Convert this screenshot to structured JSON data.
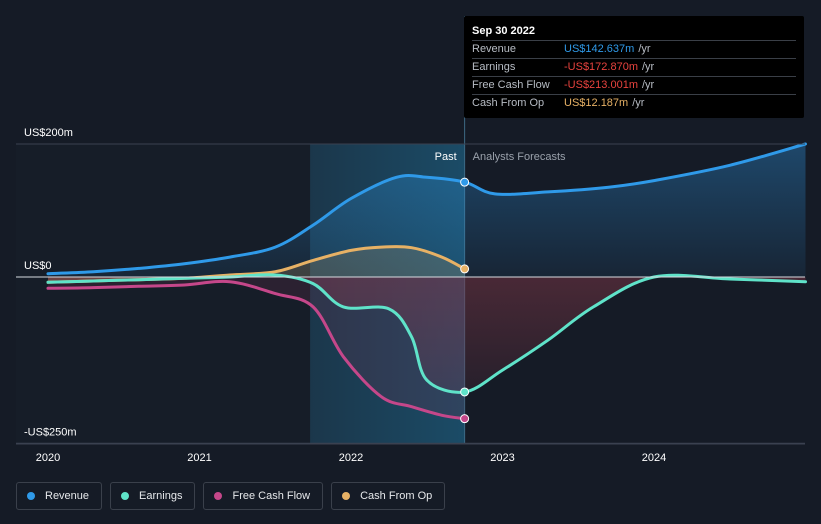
{
  "tooltip": {
    "date": "Sep 30 2022",
    "rows": [
      {
        "label": "Revenue",
        "value": "US$142.637m",
        "unit": "/yr",
        "color": "#2f9ae9"
      },
      {
        "label": "Earnings",
        "value": "-US$172.870m",
        "unit": "/yr",
        "color": "#e8433e"
      },
      {
        "label": "Free Cash Flow",
        "value": "-US$213.001m",
        "unit": "/yr",
        "color": "#e8433e"
      },
      {
        "label": "Cash From Op",
        "value": "US$12.187m",
        "unit": "/yr",
        "color": "#e7b165"
      }
    ]
  },
  "labels": {
    "past": "Past",
    "forecast": "Analysts Forecasts"
  },
  "legend": [
    {
      "label": "Revenue",
      "color": "#2f9ae9"
    },
    {
      "label": "Earnings",
      "color": "#5fe3c9"
    },
    {
      "label": "Free Cash Flow",
      "color": "#c5478a"
    },
    {
      "label": "Cash From Op",
      "color": "#e7b165"
    }
  ],
  "chart_data": {
    "type": "line",
    "y_unit": "US$m",
    "ylim": [
      -250,
      200
    ],
    "y_tick_labels": [
      "US$200m",
      "US$0",
      "-US$250m"
    ],
    "y_ticks": [
      200,
      0,
      -250
    ],
    "x_tick_labels": [
      "2020",
      "2021",
      "2022",
      "2023",
      "2024"
    ],
    "x_ticks": [
      2020,
      2021,
      2022,
      2023,
      2024
    ],
    "xlim": [
      2019.8,
      2025.0
    ],
    "past_start": 2021.73,
    "forecast_start": 2022.75,
    "grid": false,
    "legend_position": "bottom-left",
    "series": [
      {
        "name": "Revenue",
        "color": "#2f9ae9",
        "x": [
          2020.0,
          2020.3,
          2020.6,
          2020.9,
          2021.2,
          2021.5,
          2021.75,
          2022.0,
          2022.3,
          2022.5,
          2022.75,
          2022.95,
          2023.3,
          2023.7,
          2024.0,
          2024.5,
          2025.0
        ],
        "values": [
          5,
          8,
          13,
          20,
          30,
          45,
          78,
          118,
          150,
          150,
          142.637,
          125,
          128,
          135,
          145,
          168,
          200
        ]
      },
      {
        "name": "Earnings",
        "color": "#5fe3c9",
        "x": [
          2020.0,
          2020.3,
          2020.6,
          2020.9,
          2021.2,
          2021.5,
          2021.75,
          2021.95,
          2022.25,
          2022.4,
          2022.5,
          2022.75,
          2023.0,
          2023.3,
          2023.6,
          2024.0,
          2024.5,
          2025.0
        ],
        "values": [
          -8,
          -6,
          -4,
          -2,
          0,
          3,
          -10,
          -45,
          -48,
          -90,
          -155,
          -172.87,
          -140,
          -95,
          -45,
          0,
          -3,
          -7
        ]
      },
      {
        "name": "Free Cash Flow",
        "color": "#c5478a",
        "x": [
          2020.0,
          2020.3,
          2020.6,
          2020.9,
          2021.2,
          2021.5,
          2021.75,
          2021.95,
          2022.2,
          2022.4,
          2022.6,
          2022.75
        ],
        "values": [
          -17,
          -16,
          -14,
          -12,
          -7,
          -25,
          -45,
          -120,
          -180,
          -195,
          -208,
          -213.001
        ]
      },
      {
        "name": "Cash From Op",
        "color": "#e7b165",
        "x": [
          2020.0,
          2020.3,
          2020.6,
          2020.9,
          2021.2,
          2021.5,
          2021.75,
          2022.0,
          2022.2,
          2022.4,
          2022.6,
          2022.75
        ],
        "values": [
          -8,
          -6,
          -4,
          -2,
          3,
          8,
          25,
          40,
          45,
          44,
          30,
          12.187
        ]
      }
    ]
  }
}
